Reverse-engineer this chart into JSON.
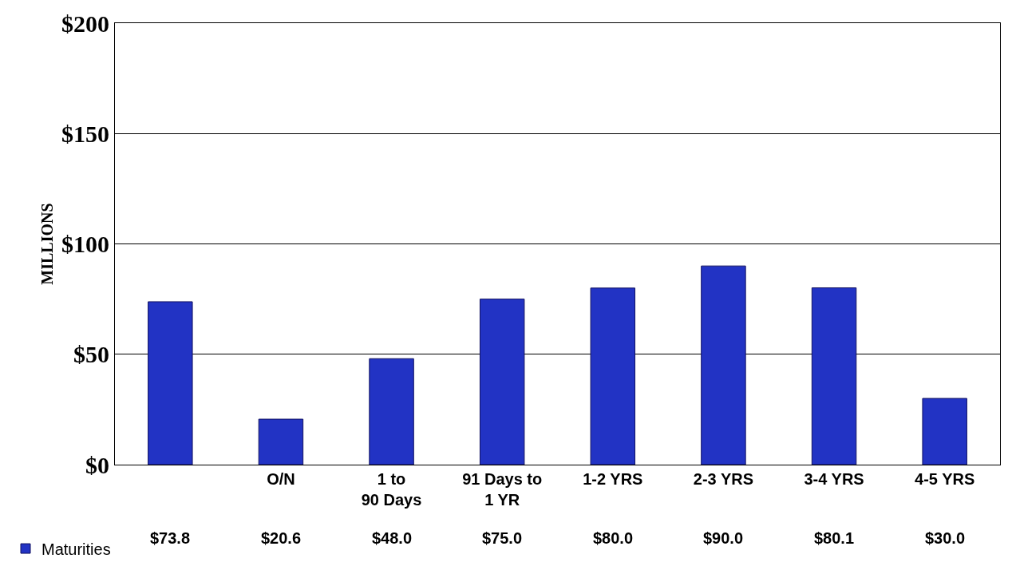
{
  "chart_data": {
    "type": "bar",
    "ylabel": "MILLIONS",
    "categories": [
      null,
      "O/N",
      "1 to 90 Days",
      "91 Days to 1 YR",
      "1-2 YRS",
      "2-3 YRS",
      "3-4 YRS",
      "4-5 YRS"
    ],
    "series": [
      {
        "name": "Maturities",
        "color": "#2233c4",
        "values": [
          73.8,
          20.6,
          48.0,
          75.0,
          80.0,
          90.0,
          80.1,
          30.0
        ],
        "value_labels": [
          "$73.8",
          "$20.6",
          "$48.0",
          "$75.0",
          "$80.0",
          "$90.0",
          "$80.1",
          "$30.0"
        ]
      }
    ],
    "ylim": [
      0,
      200
    ],
    "yticks": [
      {
        "value": 0,
        "label": "$0"
      },
      {
        "value": 50,
        "label": "$50"
      },
      {
        "value": 100,
        "label": "$100"
      },
      {
        "value": 150,
        "label": "$150"
      },
      {
        "value": 200,
        "label": "$200"
      }
    ],
    "grid": "y",
    "legend": "bottom left"
  }
}
